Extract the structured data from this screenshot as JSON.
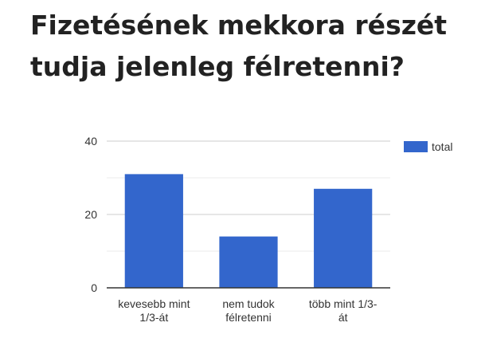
{
  "title": "Fizetésének mekkora részét tudja jelenleg félretenni?",
  "chart_data": {
    "type": "bar",
    "categories": [
      [
        "kevesebb mint",
        "1/3-át"
      ],
      [
        "nem tudok",
        "félretenni"
      ],
      [
        "több mint 1/3-",
        "át"
      ]
    ],
    "series": [
      {
        "name": "total",
        "values": [
          31,
          14,
          27
        ],
        "color": "#3366cc"
      }
    ],
    "ylim": [
      0,
      40
    ],
    "yticks": [
      0,
      20,
      40
    ],
    "minor_gridlines": [
      10,
      30
    ],
    "grid": true,
    "legend": "right"
  }
}
